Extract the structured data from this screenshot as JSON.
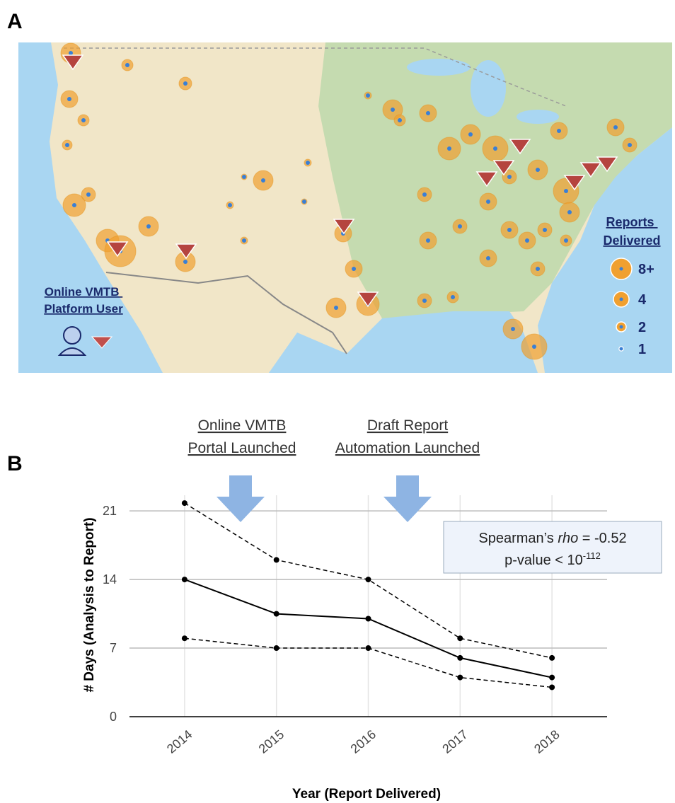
{
  "panel_a": {
    "label": "A",
    "user_legend": {
      "lines": [
        "Online VMTB",
        "Platform User"
      ]
    },
    "size_legend": {
      "title_lines": [
        "Reports",
        "Delivered"
      ],
      "labels": [
        "8+",
        "4",
        "2",
        "1"
      ]
    }
  },
  "panel_b": {
    "label": "B"
  },
  "chart_data": {
    "type": "line",
    "x_label": "Year (Report Delivered)",
    "y_label": "# Days (Analysis to Report)",
    "x": [
      2014,
      2015,
      2016,
      2017,
      2018
    ],
    "xlim": [
      2013.4,
      2018.6
    ],
    "xticks": [
      2014,
      2015,
      2016,
      2017,
      2018
    ],
    "ylim": [
      0,
      22.6
    ],
    "yticks": [
      0,
      7,
      14,
      21
    ],
    "grid": true,
    "series": [
      {
        "color": "#000000",
        "dash": "dashed",
        "values": [
          21.8,
          16,
          14,
          8,
          6
        ]
      },
      {
        "color": "#000000",
        "dash": "solid",
        "values": [
          14,
          10.5,
          10,
          6,
          4
        ]
      },
      {
        "color": "#000000",
        "dash": "dashed",
        "values": [
          8,
          7,
          7,
          4,
          3
        ]
      }
    ],
    "annotations": [
      {
        "lines": [
          "Online VMTB",
          "Portal Launched"
        ]
      },
      {
        "lines": [
          "Draft Report",
          "Automation Launched"
        ]
      }
    ],
    "stats": {
      "line1": [
        "Spearman’s ",
        "rho",
        " = -0.52"
      ],
      "line2": [
        "p-value  < 10",
        "-112"
      ]
    }
  }
}
